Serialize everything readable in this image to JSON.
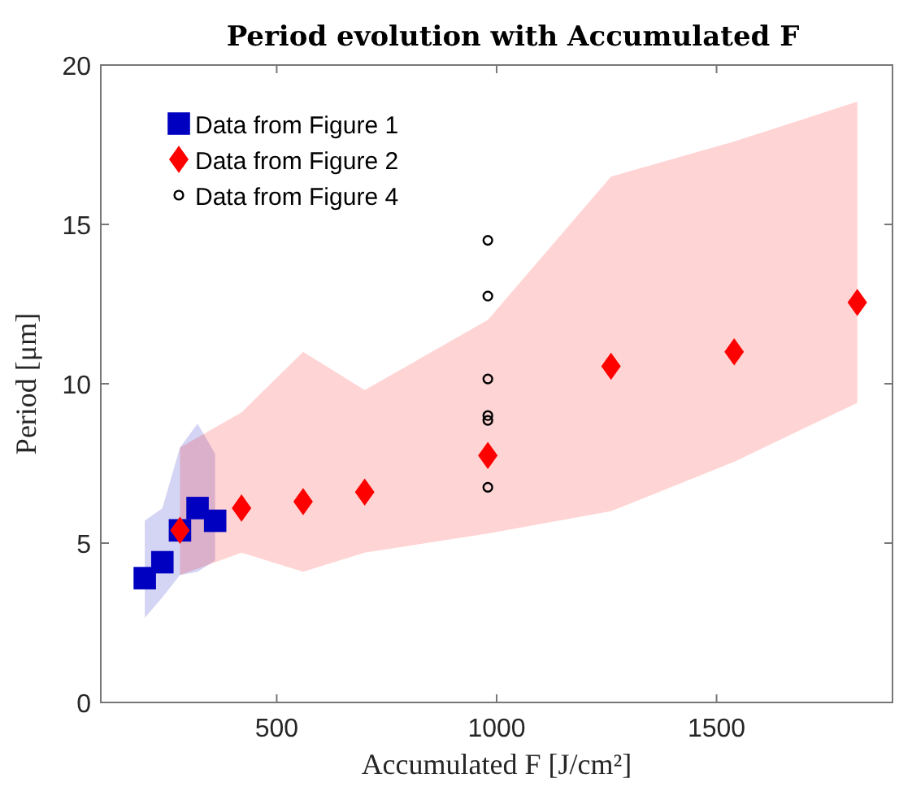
{
  "chart_data": {
    "type": "scatter",
    "title": "Period evolution with Accumulated F",
    "xlabel": "Accumulated F [J/cm²]",
    "ylabel": "Period [μm]",
    "xlim": [
      100,
      1900
    ],
    "xticks": [
      500,
      1000,
      1500
    ],
    "ylim": [
      0,
      20
    ],
    "yticks": [
      0,
      5,
      10,
      15,
      20
    ],
    "grid": false,
    "legend": "top left",
    "series": [
      {
        "name": "Data from Figure 1",
        "color": "#0000c0",
        "marker": "square",
        "x": [
          200,
          240,
          280,
          320,
          360
        ],
        "values": [
          3.9,
          4.4,
          5.4,
          6.1,
          5.7
        ],
        "lower": [
          2.65,
          3.3,
          4.0,
          4.1,
          4.45
        ],
        "upper": [
          5.7,
          6.1,
          8.0,
          8.75,
          7.8
        ]
      },
      {
        "name": "Data from Figure 2",
        "color": "#ff0000",
        "marker": "diamond",
        "x": [
          280,
          420,
          560,
          700,
          980,
          1260,
          1540,
          1820
        ],
        "values": [
          5.4,
          6.1,
          6.3,
          6.6,
          7.75,
          10.55,
          11.0,
          12.55
        ],
        "lower": [
          4.0,
          4.7,
          4.1,
          4.7,
          5.3,
          6.0,
          7.55,
          9.4
        ],
        "upper": [
          8.0,
          9.1,
          11.0,
          9.8,
          12.0,
          16.5,
          17.6,
          18.85
        ]
      },
      {
        "name": "Data from Figure 4",
        "color": "#000000",
        "marker": "circle",
        "x": [
          980,
          980,
          980,
          980,
          980,
          980
        ],
        "values": [
          14.5,
          12.75,
          10.15,
          9.0,
          8.85,
          6.75
        ]
      }
    ]
  }
}
